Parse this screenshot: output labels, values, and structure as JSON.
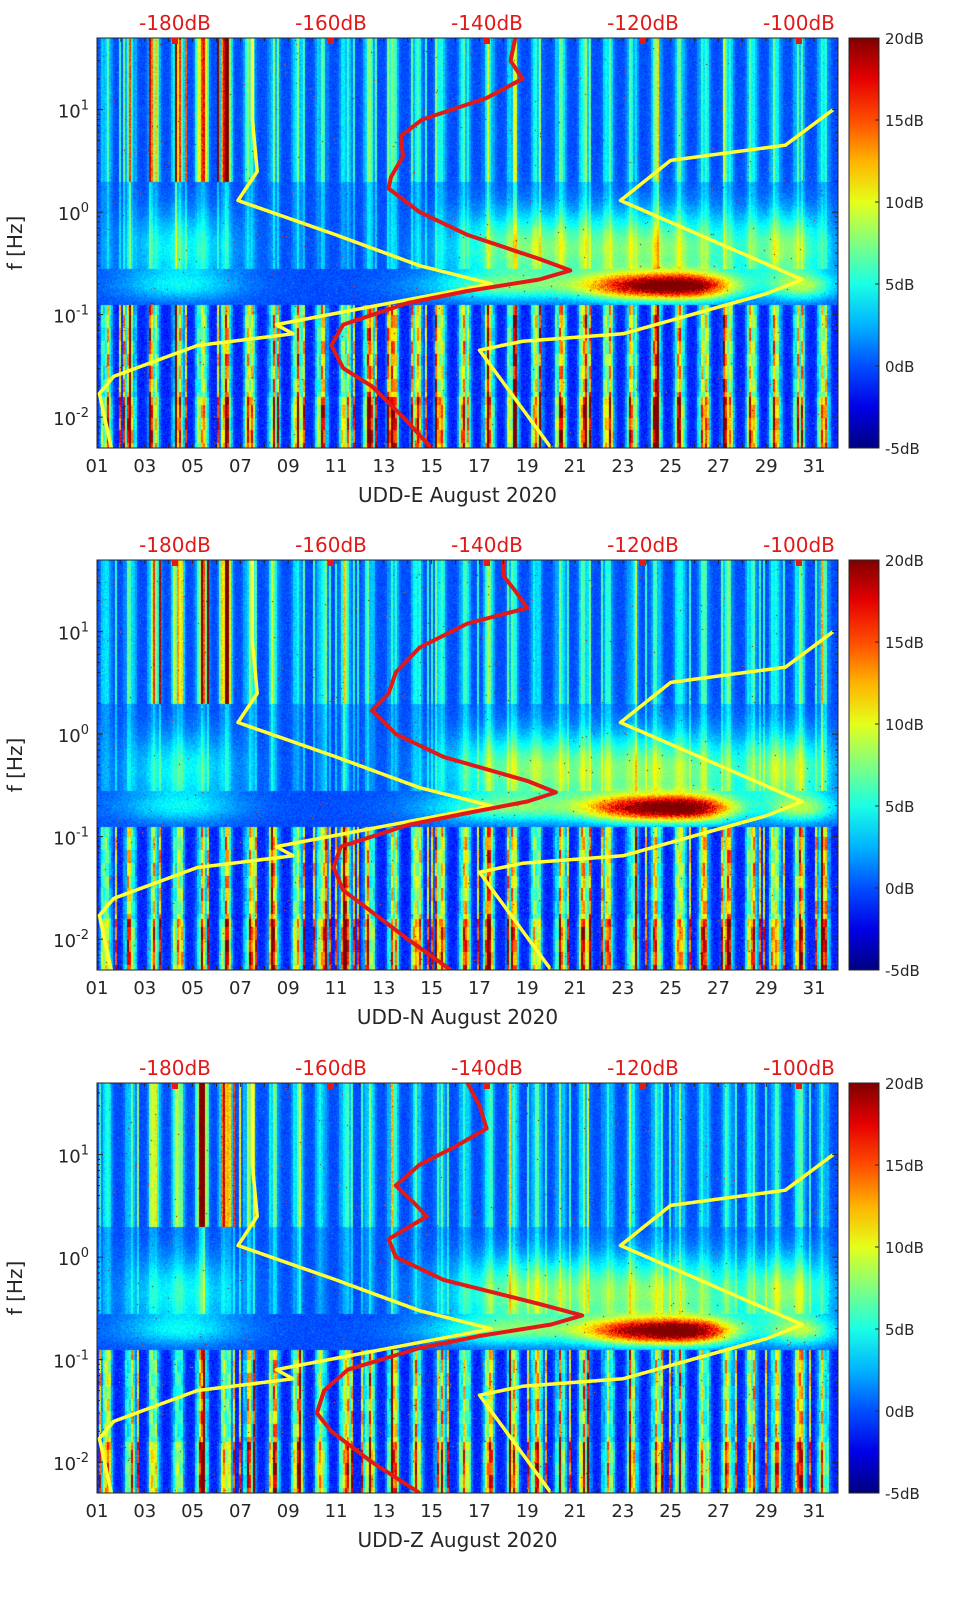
{
  "chart_data": [
    {
      "type": "heatmap",
      "xlabel": "UDD-E August 2020",
      "ylabel": "f [Hz]",
      "x_ticks": [
        "01",
        "03",
        "05",
        "07",
        "09",
        "11",
        "13",
        "15",
        "17",
        "19",
        "21",
        "23",
        "25",
        "27",
        "29",
        "31"
      ],
      "y_ticks": [
        {
          "value": 0.01,
          "base": "10",
          "exp": "-2"
        },
        {
          "value": 0.1,
          "base": "10",
          "exp": "-1"
        },
        {
          "value": 1,
          "base": "10",
          "exp": "0"
        },
        {
          "value": 10,
          "base": "10",
          "exp": "1"
        }
      ],
      "y_scale": "log",
      "ylim": [
        0.005,
        50
      ],
      "xlim": [
        1,
        32
      ],
      "top_axis_ticks": [
        "-180dB",
        "-160dB",
        "-140dB",
        "-120dB",
        "-100dB"
      ],
      "top_axis_range_dB": [
        -190,
        -95
      ],
      "colorbar": {
        "ticks": [
          "20dB",
          "15dB",
          "10dB",
          "5dB",
          "0dB",
          "-5dB"
        ],
        "range_dB": [
          -5,
          20
        ],
        "colormap": "jet"
      },
      "series": [
        {
          "color": "#ffff33",
          "f": [
            0.005,
            0.017,
            0.025,
            0.05,
            0.065,
            0.08,
            0.2,
            0.3,
            0.6,
            1.3,
            2.5,
            8,
            50
          ],
          "t": [
            1.6,
            1.1,
            1.7,
            5.2,
            9.2,
            8.5,
            17.5,
            14.5,
            11.0,
            6.9,
            7.7,
            7.5,
            7.5
          ]
        },
        {
          "color": "#ffff33",
          "f": [
            0.005,
            0.045,
            0.055,
            0.065,
            0.16,
            0.22,
            1.3,
            3.2,
            4.5,
            10
          ],
          "t": [
            20.0,
            17.0,
            18.8,
            23.0,
            29.0,
            30.5,
            22.9,
            25.0,
            29.8,
            31.8
          ]
        },
        {
          "color": "#e11919",
          "f": [
            0.005,
            0.01,
            0.02,
            0.03,
            0.05,
            0.08,
            0.13,
            0.17,
            0.22,
            0.27,
            0.35,
            0.6,
            1.0,
            1.7,
            2.2,
            3.5,
            5.5,
            8,
            13,
            20,
            30,
            50
          ],
          "t": [
            15.0,
            13.8,
            12.5,
            11.3,
            10.8,
            11.3,
            14.0,
            16.5,
            19.5,
            20.8,
            19.5,
            16.5,
            14.5,
            13.2,
            13.3,
            13.8,
            13.7,
            14.6,
            17.3,
            18.8,
            18.3,
            18.5
          ]
        }
      ],
      "seed": 11
    },
    {
      "type": "heatmap",
      "xlabel": "UDD-N August 2020",
      "ylabel": "f [Hz]",
      "x_ticks": [
        "01",
        "03",
        "05",
        "07",
        "09",
        "11",
        "13",
        "15",
        "17",
        "19",
        "21",
        "23",
        "25",
        "27",
        "29",
        "31"
      ],
      "y_ticks": [
        {
          "value": 0.01,
          "base": "10",
          "exp": "-2"
        },
        {
          "value": 0.1,
          "base": "10",
          "exp": "-1"
        },
        {
          "value": 1,
          "base": "10",
          "exp": "0"
        },
        {
          "value": 10,
          "base": "10",
          "exp": "1"
        }
      ],
      "y_scale": "log",
      "ylim": [
        0.005,
        50
      ],
      "xlim": [
        1,
        32
      ],
      "top_axis_ticks": [
        "-180dB",
        "-160dB",
        "-140dB",
        "-120dB",
        "-100dB"
      ],
      "top_axis_range_dB": [
        -190,
        -95
      ],
      "colorbar": {
        "ticks": [
          "20dB",
          "15dB",
          "10dB",
          "5dB",
          "0dB",
          "-5dB"
        ],
        "range_dB": [
          -5,
          20
        ],
        "colormap": "jet"
      },
      "series": [
        {
          "color": "#ffff33",
          "f": [
            0.005,
            0.017,
            0.025,
            0.05,
            0.065,
            0.08,
            0.2,
            0.3,
            0.6,
            1.3,
            2.5,
            8,
            50
          ],
          "t": [
            1.6,
            1.1,
            1.7,
            5.2,
            9.2,
            8.5,
            17.5,
            14.5,
            11.0,
            6.9,
            7.7,
            7.5,
            7.5
          ]
        },
        {
          "color": "#ffff33",
          "f": [
            0.005,
            0.045,
            0.055,
            0.065,
            0.16,
            0.22,
            1.3,
            3.2,
            4.5,
            10
          ],
          "t": [
            20.0,
            17.0,
            18.8,
            23.0,
            29.0,
            30.5,
            22.9,
            25.0,
            29.8,
            31.8
          ]
        },
        {
          "color": "#e11919",
          "f": [
            0.005,
            0.01,
            0.02,
            0.03,
            0.05,
            0.08,
            0.13,
            0.17,
            0.22,
            0.27,
            0.35,
            0.6,
            1.0,
            1.7,
            2.5,
            4,
            7,
            12,
            17,
            25,
            35,
            50
          ],
          "t": [
            15.8,
            14.0,
            12.3,
            11.3,
            10.9,
            11.2,
            14.0,
            16.5,
            19.0,
            20.2,
            19.0,
            15.5,
            13.5,
            12.5,
            13.2,
            13.5,
            14.5,
            16.5,
            19.0,
            18.5,
            18.0,
            18.0
          ]
        }
      ],
      "seed": 23
    },
    {
      "type": "heatmap",
      "xlabel": "UDD-Z August 2020",
      "ylabel": "f [Hz]",
      "x_ticks": [
        "01",
        "03",
        "05",
        "07",
        "09",
        "11",
        "13",
        "15",
        "17",
        "19",
        "21",
        "23",
        "25",
        "27",
        "29",
        "31"
      ],
      "y_ticks": [
        {
          "value": 0.01,
          "base": "10",
          "exp": "-2"
        },
        {
          "value": 0.1,
          "base": "10",
          "exp": "-1"
        },
        {
          "value": 1,
          "base": "10",
          "exp": "0"
        },
        {
          "value": 10,
          "base": "10",
          "exp": "1"
        }
      ],
      "y_scale": "log",
      "ylim": [
        0.005,
        50
      ],
      "xlim": [
        1,
        32
      ],
      "top_axis_ticks": [
        "-180dB",
        "-160dB",
        "-140dB",
        "-120dB",
        "-100dB"
      ],
      "top_axis_range_dB": [
        -190,
        -95
      ],
      "colorbar": {
        "ticks": [
          "20dB",
          "15dB",
          "10dB",
          "5dB",
          "0dB",
          "-5dB"
        ],
        "range_dB": [
          -5,
          20
        ],
        "colormap": "jet"
      },
      "series": [
        {
          "color": "#ffff33",
          "f": [
            0.005,
            0.017,
            0.025,
            0.05,
            0.065,
            0.08,
            0.2,
            0.3,
            0.6,
            1.3,
            2.5,
            8,
            50
          ],
          "t": [
            1.6,
            1.1,
            1.7,
            5.2,
            9.2,
            8.5,
            17.5,
            14.5,
            11.0,
            6.9,
            7.7,
            7.5,
            7.5
          ]
        },
        {
          "color": "#ffff33",
          "f": [
            0.005,
            0.045,
            0.055,
            0.065,
            0.16,
            0.22,
            1.3,
            3.2,
            4.5,
            10
          ],
          "t": [
            20.0,
            17.0,
            18.8,
            23.0,
            29.0,
            30.5,
            22.9,
            25.0,
            29.8,
            31.8
          ]
        },
        {
          "color": "#e11919",
          "f": [
            0.005,
            0.01,
            0.02,
            0.03,
            0.05,
            0.08,
            0.13,
            0.17,
            0.22,
            0.27,
            0.35,
            0.6,
            1.0,
            1.5,
            2.5,
            3.5,
            5,
            8,
            12,
            18,
            30,
            50
          ],
          "t": [
            14.5,
            12.5,
            10.8,
            10.2,
            10.5,
            11.5,
            14.5,
            17.0,
            20.0,
            21.3,
            19.5,
            15.5,
            13.5,
            13.2,
            14.8,
            14.2,
            13.5,
            14.5,
            16.0,
            17.3,
            17.0,
            16.5
          ]
        }
      ],
      "seed": 37
    }
  ]
}
